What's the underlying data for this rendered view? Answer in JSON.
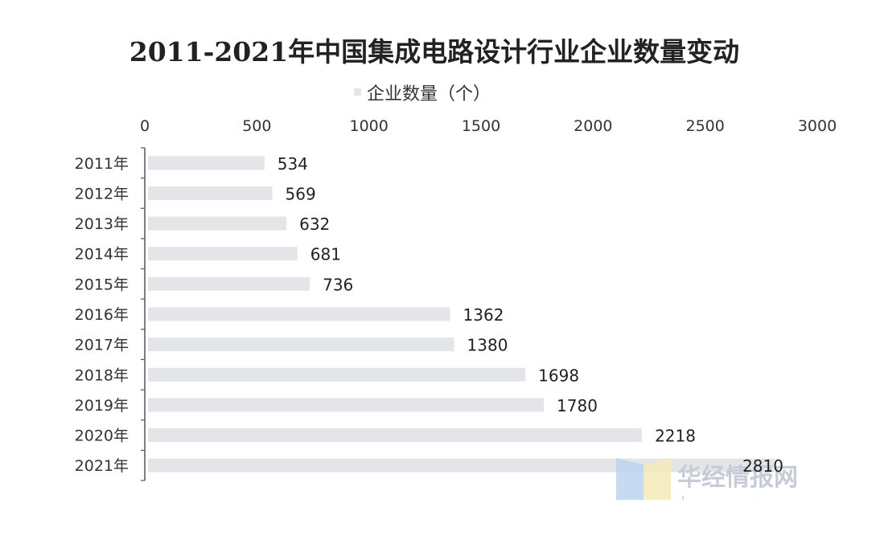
{
  "chart_data": {
    "type": "bar",
    "orientation": "horizontal",
    "title": "2011-2021年中国集成电路设计行业企业数量变动",
    "categories": [
      "2011年",
      "2012年",
      "2013年",
      "2014年",
      "2015年",
      "2016年",
      "2017年",
      "2018年",
      "2019年",
      "2020年",
      "2021年"
    ],
    "series": [
      {
        "name": "企业数量（个）",
        "values": [
          534,
          569,
          632,
          681,
          736,
          1362,
          1380,
          1698,
          1780,
          2218,
          2810
        ]
      }
    ],
    "xlim": [
      0,
      3000
    ],
    "x_ticks": [
      0,
      500,
      1000,
      1500,
      2000,
      2500,
      3000
    ],
    "x_axis_position": "top",
    "grid": false,
    "legend_position": "top-center",
    "bar_color": "#e3e5e8",
    "data_labels": true
  },
  "watermark": {
    "text": "华经情报网",
    "subtext": "huaon.com",
    "colors": [
      "#bcd3f0",
      "#f5eab8"
    ]
  }
}
